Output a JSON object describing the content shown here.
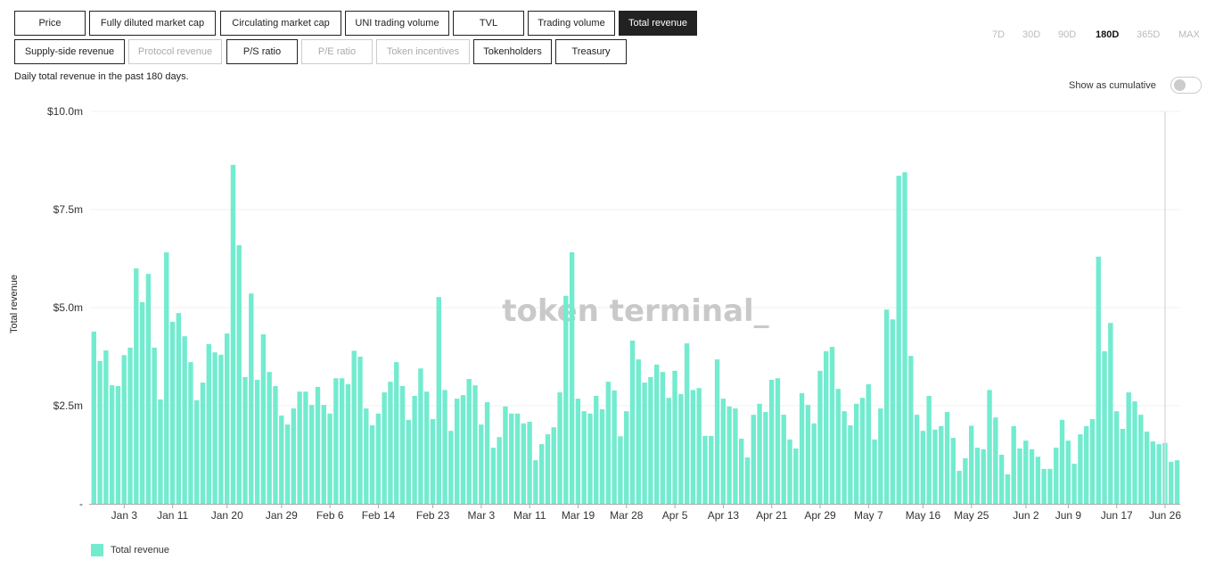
{
  "metric_buttons": [
    {
      "label": "Price",
      "state": "normal"
    },
    {
      "label": "Fully diluted market cap",
      "state": "normal"
    },
    {
      "label": "Circulating market cap",
      "state": "normal"
    },
    {
      "label": "UNI trading volume",
      "state": "normal"
    },
    {
      "label": "TVL",
      "state": "normal"
    },
    {
      "label": "Trading volume",
      "state": "normal"
    },
    {
      "label": "Total revenue",
      "state": "active"
    },
    {
      "label": "Supply-side revenue",
      "state": "normal"
    },
    {
      "label": "Protocol revenue",
      "state": "disabled"
    },
    {
      "label": "P/S ratio",
      "state": "normal"
    },
    {
      "label": "P/E ratio",
      "state": "disabled"
    },
    {
      "label": "Token incentives",
      "state": "disabled"
    },
    {
      "label": "Tokenholders",
      "state": "normal"
    },
    {
      "label": "Treasury",
      "state": "normal"
    }
  ],
  "ranges": [
    "7D",
    "30D",
    "90D",
    "180D",
    "365D",
    "MAX"
  ],
  "active_range": "180D",
  "description": "Daily total revenue in the past 180 days.",
  "cumulative_label": "Show as cumulative",
  "cumulative_on": false,
  "watermark": "token terminal_",
  "colors": {
    "bar": "#72ebcf",
    "active": "#222222"
  },
  "chart_data": {
    "type": "bar",
    "title": "",
    "ylabel": "Total revenue",
    "xlabel": "",
    "ylim": [
      0,
      10
    ],
    "unit": "$m",
    "yticks": [
      {
        "v": 0,
        "label": "-"
      },
      {
        "v": 2.5,
        "label": "$2.5m"
      },
      {
        "v": 5,
        "label": "$5.0m"
      },
      {
        "v": 7.5,
        "label": "$7.5m"
      },
      {
        "v": 10,
        "label": "$10.0m"
      }
    ],
    "xticks": [
      {
        "i": 5,
        "label": "Jan 3"
      },
      {
        "i": 13,
        "label": "Jan 11"
      },
      {
        "i": 22,
        "label": "Jan 20"
      },
      {
        "i": 31,
        "label": "Jan 29"
      },
      {
        "i": 39,
        "label": "Feb 6"
      },
      {
        "i": 47,
        "label": "Feb 14"
      },
      {
        "i": 56,
        "label": "Feb 23"
      },
      {
        "i": 64,
        "label": "Mar 3"
      },
      {
        "i": 72,
        "label": "Mar 11"
      },
      {
        "i": 80,
        "label": "Mar 19"
      },
      {
        "i": 88,
        "label": "Mar 28"
      },
      {
        "i": 96,
        "label": "Apr 5"
      },
      {
        "i": 104,
        "label": "Apr 13"
      },
      {
        "i": 112,
        "label": "Apr 21"
      },
      {
        "i": 120,
        "label": "Apr 29"
      },
      {
        "i": 128,
        "label": "May 7"
      },
      {
        "i": 137,
        "label": "May 16"
      },
      {
        "i": 145,
        "label": "May 25"
      },
      {
        "i": 154,
        "label": "Jun 2"
      },
      {
        "i": 161,
        "label": "Jun 9"
      },
      {
        "i": 169,
        "label": "Jun 17"
      },
      {
        "i": 177,
        "label": "Jun 26"
      }
    ],
    "legend": [
      {
        "name": "Total revenue",
        "position": "bottom-left"
      }
    ],
    "values": [
      4.39,
      3.64,
      3.91,
      3.02,
      3.0,
      3.79,
      3.98,
      6.0,
      5.14,
      5.86,
      3.98,
      2.66,
      6.41,
      4.64,
      4.86,
      4.27,
      3.61,
      2.64,
      3.09,
      4.07,
      3.86,
      3.8,
      4.34,
      8.64,
      6.59,
      3.23,
      5.36,
      3.16,
      4.32,
      3.36,
      3.0,
      2.25,
      2.02,
      2.43,
      2.86,
      2.86,
      2.52,
      2.98,
      2.52,
      2.3,
      3.2,
      3.2,
      3.05,
      3.9,
      3.75,
      2.43,
      2.0,
      2.3,
      2.84,
      3.11,
      3.61,
      3.0,
      2.14,
      2.75,
      3.45,
      2.86,
      2.16,
      5.27,
      2.9,
      1.86,
      2.68,
      2.77,
      3.18,
      3.02,
      2.02,
      2.59,
      1.43,
      1.7,
      2.48,
      2.3,
      2.3,
      2.05,
      2.09,
      1.11,
      1.52,
      1.77,
      1.95,
      2.84,
      5.3,
      6.41,
      2.68,
      2.36,
      2.3,
      2.75,
      2.41,
      3.11,
      2.89,
      1.72,
      2.36,
      4.16,
      3.68,
      3.09,
      3.23,
      3.55,
      3.36,
      2.7,
      3.39,
      2.8,
      4.09,
      2.9,
      2.95,
      1.73,
      1.73,
      3.68,
      2.68,
      2.48,
      2.43,
      1.66,
      1.18,
      2.27,
      2.55,
      2.34,
      3.16,
      3.2,
      2.27,
      1.64,
      1.41,
      2.82,
      2.52,
      2.05,
      3.39,
      3.89,
      4.0,
      2.93,
      2.36,
      2.0,
      2.55,
      2.7,
      3.05,
      1.64,
      2.43,
      4.95,
      4.7,
      8.36,
      8.45,
      3.77,
      2.27,
      1.86,
      2.75,
      1.89,
      1.98,
      2.34,
      1.68,
      0.84,
      1.16,
      1.99,
      1.43,
      1.39,
      2.9,
      2.2,
      1.25,
      0.75,
      1.98,
      1.41,
      1.61,
      1.39,
      1.2,
      0.89,
      0.89,
      1.43,
      2.14,
      1.61,
      1.02,
      1.77,
      1.98,
      2.16,
      6.3,
      3.89,
      4.61,
      2.36,
      1.91,
      2.84,
      2.61,
      2.27,
      1.84,
      1.59,
      1.52,
      1.55,
      1.07,
      1.11
    ]
  }
}
